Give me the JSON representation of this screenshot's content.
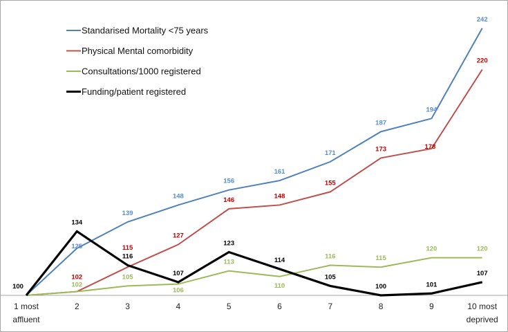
{
  "chart_data": {
    "type": "line",
    "title": "",
    "xlabel": "",
    "ylabel": "",
    "categories": [
      [
        "1 most",
        "affluent"
      ],
      [
        "2"
      ],
      [
        "3"
      ],
      [
        "4"
      ],
      [
        "5"
      ],
      [
        "6"
      ],
      [
        "7"
      ],
      [
        "8"
      ],
      [
        "9"
      ],
      [
        "10 most",
        "deprived"
      ]
    ],
    "ylim": [
      100,
      250
    ],
    "grid": false,
    "legend_position": "top-left",
    "series": [
      {
        "name": "Standarised Mortality <75 years",
        "line_color": "#4F81BD",
        "label_color": "#558ED5",
        "values": [
          100,
          125,
          139,
          148,
          156,
          161,
          171,
          187,
          194,
          242
        ],
        "labels_shown": [
          false,
          true,
          true,
          true,
          true,
          true,
          true,
          true,
          true,
          true
        ]
      },
      {
        "name": "Physical Mental comorbidity",
        "line_color": "#C0504D",
        "label_color": "#C00000",
        "values": [
          100,
          102,
          115,
          127,
          146,
          148,
          155,
          173,
          178,
          220
        ],
        "labels_shown": [
          false,
          true,
          true,
          true,
          true,
          true,
          true,
          true,
          true,
          true
        ]
      },
      {
        "name": "Consultations/1000 registered",
        "line_color": "#9BBB59",
        "label_color": "#9BBB59",
        "values": [
          100,
          102,
          105,
          106,
          113,
          110,
          116,
          115,
          120,
          120
        ],
        "labels_shown": [
          false,
          true,
          true,
          true,
          true,
          true,
          true,
          true,
          true,
          true
        ]
      },
      {
        "name": "Funding/patient registered",
        "line_color": "#000000",
        "label_color": "#000000",
        "values": [
          100,
          134,
          116,
          107,
          123,
          114,
          105,
          100,
          101,
          107
        ],
        "labels_shown": [
          true,
          true,
          true,
          true,
          true,
          true,
          true,
          true,
          true,
          true
        ]
      }
    ]
  }
}
